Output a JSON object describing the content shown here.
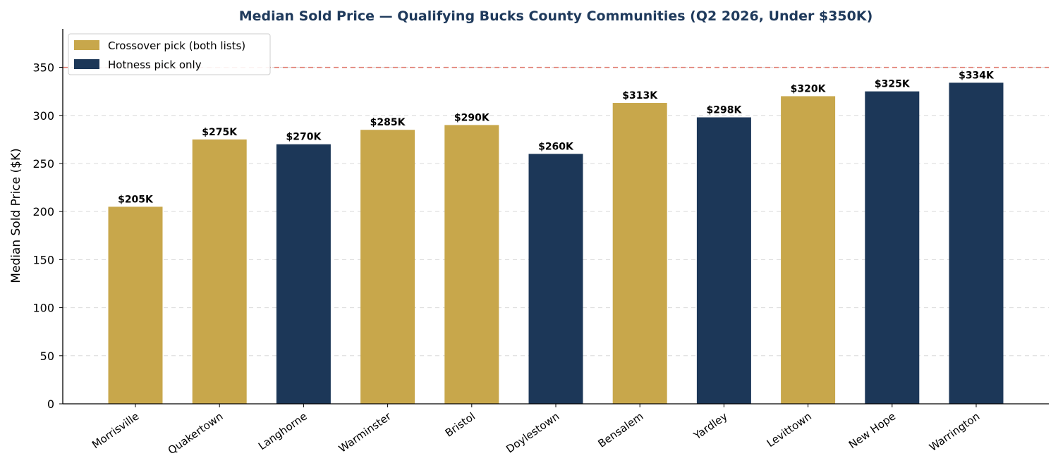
{
  "chart_data": {
    "type": "bar",
    "title": "Median Sold Price — Qualifying Bucks County Communities (Q2 2026, Under $350K)",
    "xlabel": "",
    "ylabel": "Median Sold Price ($K)",
    "ylim": [
      0,
      390
    ],
    "yticks": [
      0,
      50,
      100,
      150,
      200,
      250,
      300,
      350
    ],
    "grid": "y-dashed",
    "legend_position": "top-left",
    "reference_line": {
      "value": 350,
      "style": "dashed",
      "color": "#e07b6f"
    },
    "categories": [
      "Morrisville",
      "Quakertown",
      "Langhorne",
      "Warminster",
      "Bristol",
      "Doylestown",
      "Bensalem",
      "Yardley",
      "Levittown",
      "New Hope",
      "Warrington"
    ],
    "values": [
      205,
      275,
      270,
      285,
      290,
      260,
      313,
      298,
      320,
      325,
      334
    ],
    "value_labels": [
      "$205K",
      "$275K",
      "$270K",
      "$285K",
      "$290K",
      "$260K",
      "$313K",
      "$298K",
      "$320K",
      "$325K",
      "$334K"
    ],
    "groups": [
      "crossover",
      "crossover",
      "hotness",
      "crossover",
      "crossover",
      "hotness",
      "crossover",
      "hotness",
      "crossover",
      "hotness",
      "hotness"
    ],
    "legend": [
      {
        "key": "crossover",
        "label": "Crossover pick (both lists)",
        "color": "#c8a74b"
      },
      {
        "key": "hotness",
        "label": "Hotness pick only",
        "color": "#1c3758"
      }
    ]
  }
}
